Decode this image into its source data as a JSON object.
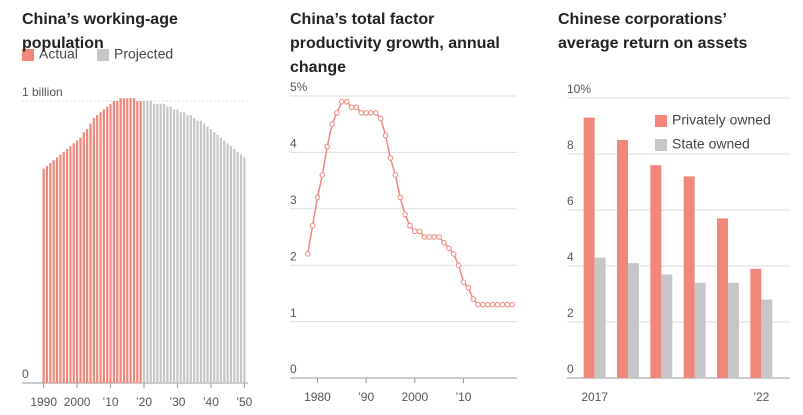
{
  "chart_data": [
    {
      "type": "bar",
      "title": "China’s working-age population",
      "x": [
        1990,
        1991,
        1992,
        1993,
        1994,
        1995,
        1996,
        1997,
        1998,
        1999,
        2000,
        2001,
        2002,
        2003,
        2004,
        2005,
        2006,
        2007,
        2008,
        2009,
        2010,
        2011,
        2012,
        2013,
        2014,
        2015,
        2016,
        2017,
        2018,
        2019,
        2020,
        2021,
        2022,
        2023,
        2024,
        2025,
        2026,
        2027,
        2028,
        2029,
        2030,
        2031,
        2032,
        2033,
        2034,
        2035,
        2036,
        2037,
        2038,
        2039,
        2040,
        2041,
        2042,
        2043,
        2044,
        2045,
        2046,
        2047,
        2048,
        2049,
        2050
      ],
      "xlim": [
        1989.5,
        2050.5
      ],
      "xticks": [
        1990,
        2000,
        {
          "value": 2010,
          "label": "’10"
        },
        {
          "value": 2020,
          "label": "’20"
        },
        {
          "value": 2030,
          "label": "’30"
        },
        {
          "value": 2040,
          "label": "’40"
        },
        {
          "value": 2050,
          "label": "’50"
        }
      ],
      "ylim": [
        0,
        1
      ],
      "yticks": [
        0,
        {
          "value": 1,
          "label": "1 billion"
        }
      ],
      "grid": true,
      "legend": "top left",
      "series": [
        {
          "name": "Actual",
          "color": "#f0877a",
          "values": [
            0.76,
            0.77,
            0.78,
            0.79,
            0.8,
            0.81,
            0.82,
            0.83,
            0.84,
            0.85,
            0.86,
            0.87,
            0.89,
            0.9,
            0.92,
            0.94,
            0.95,
            0.96,
            0.97,
            0.98,
            0.99,
            1.0,
            1.0,
            1.01,
            1.01,
            1.01,
            1.01,
            1.01,
            1.0,
            1.0,
            null,
            null,
            null,
            null,
            null,
            null,
            null,
            null,
            null,
            null,
            null,
            null,
            null,
            null,
            null,
            null,
            null,
            null,
            null,
            null,
            null,
            null,
            null,
            null,
            null,
            null,
            null,
            null,
            null,
            null,
            null
          ]
        },
        {
          "name": "Projected",
          "color": "#c6c6c6",
          "values": [
            null,
            null,
            null,
            null,
            null,
            null,
            null,
            null,
            null,
            null,
            null,
            null,
            null,
            null,
            null,
            null,
            null,
            null,
            null,
            null,
            null,
            null,
            null,
            null,
            null,
            null,
            null,
            null,
            null,
            null,
            1.0,
            1.0,
            1.0,
            0.99,
            0.99,
            0.99,
            0.99,
            0.98,
            0.98,
            0.97,
            0.97,
            0.96,
            0.96,
            0.95,
            0.95,
            0.94,
            0.93,
            0.93,
            0.92,
            0.91,
            0.9,
            0.89,
            0.88,
            0.87,
            0.86,
            0.85,
            0.84,
            0.83,
            0.82,
            0.81,
            0.8
          ]
        }
      ]
    },
    {
      "type": "line",
      "title": "China’s total factor productivity growth, annual change",
      "x": [
        1978,
        1979,
        1980,
        1981,
        1982,
        1983,
        1984,
        1985,
        1986,
        1987,
        1988,
        1989,
        1990,
        1991,
        1992,
        1993,
        1994,
        1995,
        1996,
        1997,
        1998,
        1999,
        2000,
        2001,
        2002,
        2003,
        2004,
        2005,
        2006,
        2007,
        2008,
        2009,
        2010,
        2011,
        2012,
        2013,
        2014,
        2015,
        2016,
        2017,
        2018,
        2019,
        2020
      ],
      "values": [
        2.2,
        2.7,
        3.2,
        3.6,
        4.1,
        4.5,
        4.7,
        4.9,
        4.9,
        4.8,
        4.8,
        4.7,
        4.7,
        4.7,
        4.7,
        4.6,
        4.3,
        3.9,
        3.6,
        3.2,
        2.9,
        2.7,
        2.6,
        2.6,
        2.5,
        2.5,
        2.5,
        2.5,
        2.4,
        2.3,
        2.2,
        2.0,
        1.7,
        1.6,
        1.4,
        1.3,
        1.3,
        1.3,
        1.3,
        1.3,
        1.3,
        1.3,
        1.3
      ],
      "color": "#f0877a",
      "xlim": [
        1976,
        2021
      ],
      "xticks": [
        1980,
        {
          "value": 1990,
          "label": "’90"
        },
        2000,
        {
          "value": 2010,
          "label": "’10"
        }
      ],
      "ylim": [
        0,
        5
      ],
      "yticks": [
        0,
        1,
        2,
        3,
        4,
        {
          "value": 5,
          "label": "5%"
        }
      ],
      "grid": true
    },
    {
      "type": "bar",
      "title": "Chinese corporations’ average return on assets",
      "categories": [
        "2017",
        null,
        null,
        null,
        null,
        "’22"
      ],
      "ylim": [
        0,
        10
      ],
      "yticks": [
        0,
        2,
        4,
        6,
        8,
        {
          "value": 10,
          "label": "10%"
        }
      ],
      "grid": true,
      "legend": "upper right",
      "series": [
        {
          "name": "Privately owned",
          "color": "#f0877a",
          "values": [
            9.3,
            8.5,
            7.6,
            7.2,
            5.7,
            3.9
          ]
        },
        {
          "name": "State owned",
          "color": "#c6c6c6",
          "values": [
            4.3,
            4.1,
            3.7,
            3.4,
            3.4,
            2.8
          ]
        }
      ]
    }
  ]
}
